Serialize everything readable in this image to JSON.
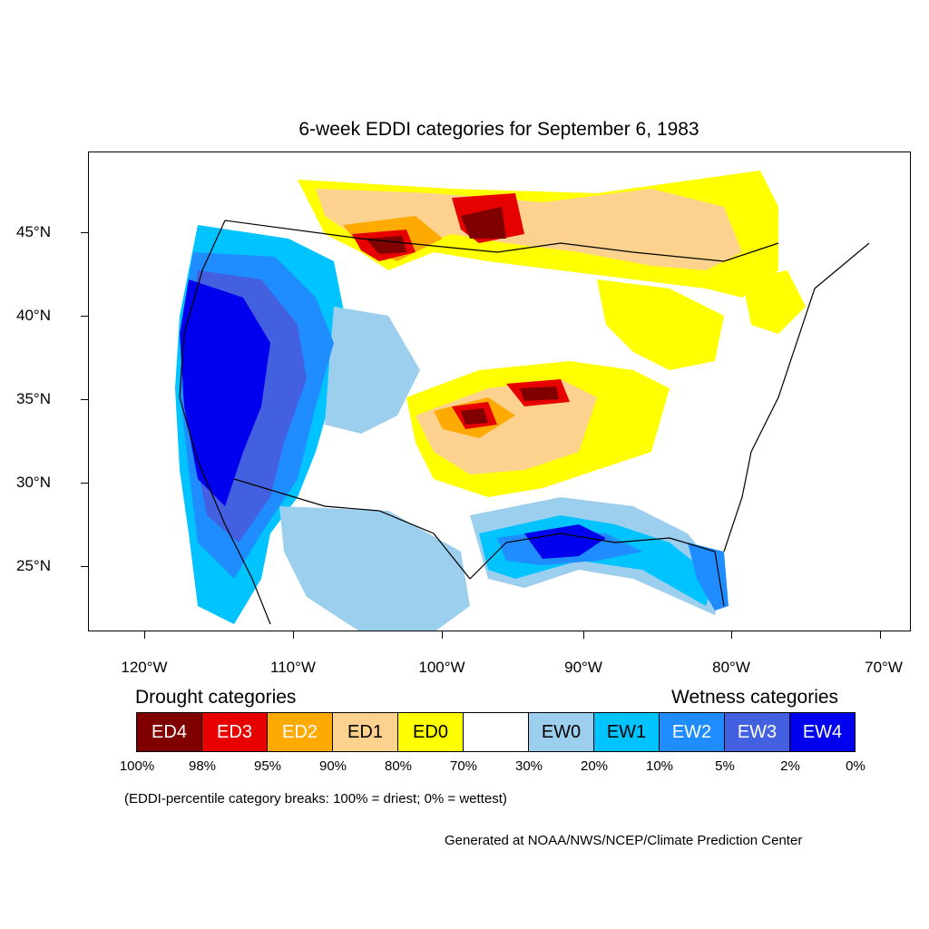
{
  "title": "6-week EDDI categories for September 6, 1983",
  "lat_labels": [
    "45°N",
    "40°N",
    "35°N",
    "30°N",
    "25°N"
  ],
  "lon_labels": [
    "120°W",
    "110°W",
    "100°W",
    "90°W",
    "80°W",
    "70°W"
  ],
  "drought_heading": "Drought categories",
  "wetness_heading": "Wetness categories",
  "categories": [
    {
      "label": "ED4",
      "color": "#800000",
      "text_color": "#ffffff"
    },
    {
      "label": "ED3",
      "color": "#e60000",
      "text_color": "#ffffff"
    },
    {
      "label": "ED2",
      "color": "#ffaa00",
      "text_color": "#ffffff"
    },
    {
      "label": "ED1",
      "color": "#fcd28e",
      "text_color": "#000000"
    },
    {
      "label": "ED0",
      "color": "#ffff00",
      "text_color": "#000000"
    },
    {
      "label": "",
      "color": "#ffffff",
      "text_color": "#000000"
    },
    {
      "label": "EW0",
      "color": "#9ccfee",
      "text_color": "#000000"
    },
    {
      "label": "EW1",
      "color": "#00c3ff",
      "text_color": "#000000"
    },
    {
      "label": "EW2",
      "color": "#1f8cff",
      "text_color": "#ffffff"
    },
    {
      "label": "EW3",
      "color": "#4360e0",
      "text_color": "#ffffff"
    },
    {
      "label": "EW4",
      "color": "#0000ee",
      "text_color": "#ffffff"
    }
  ],
  "percent_breaks": [
    "100%",
    "98%",
    "95%",
    "90%",
    "80%",
    "70%",
    "30%",
    "20%",
    "10%",
    "5%",
    "2%",
    "0%"
  ],
  "breaks_note": "(EDDI-percentile category breaks: 100% = driest; 0% = wettest)",
  "credit": "Generated at NOAA/NWS/NCEP/Climate Prediction Center"
}
